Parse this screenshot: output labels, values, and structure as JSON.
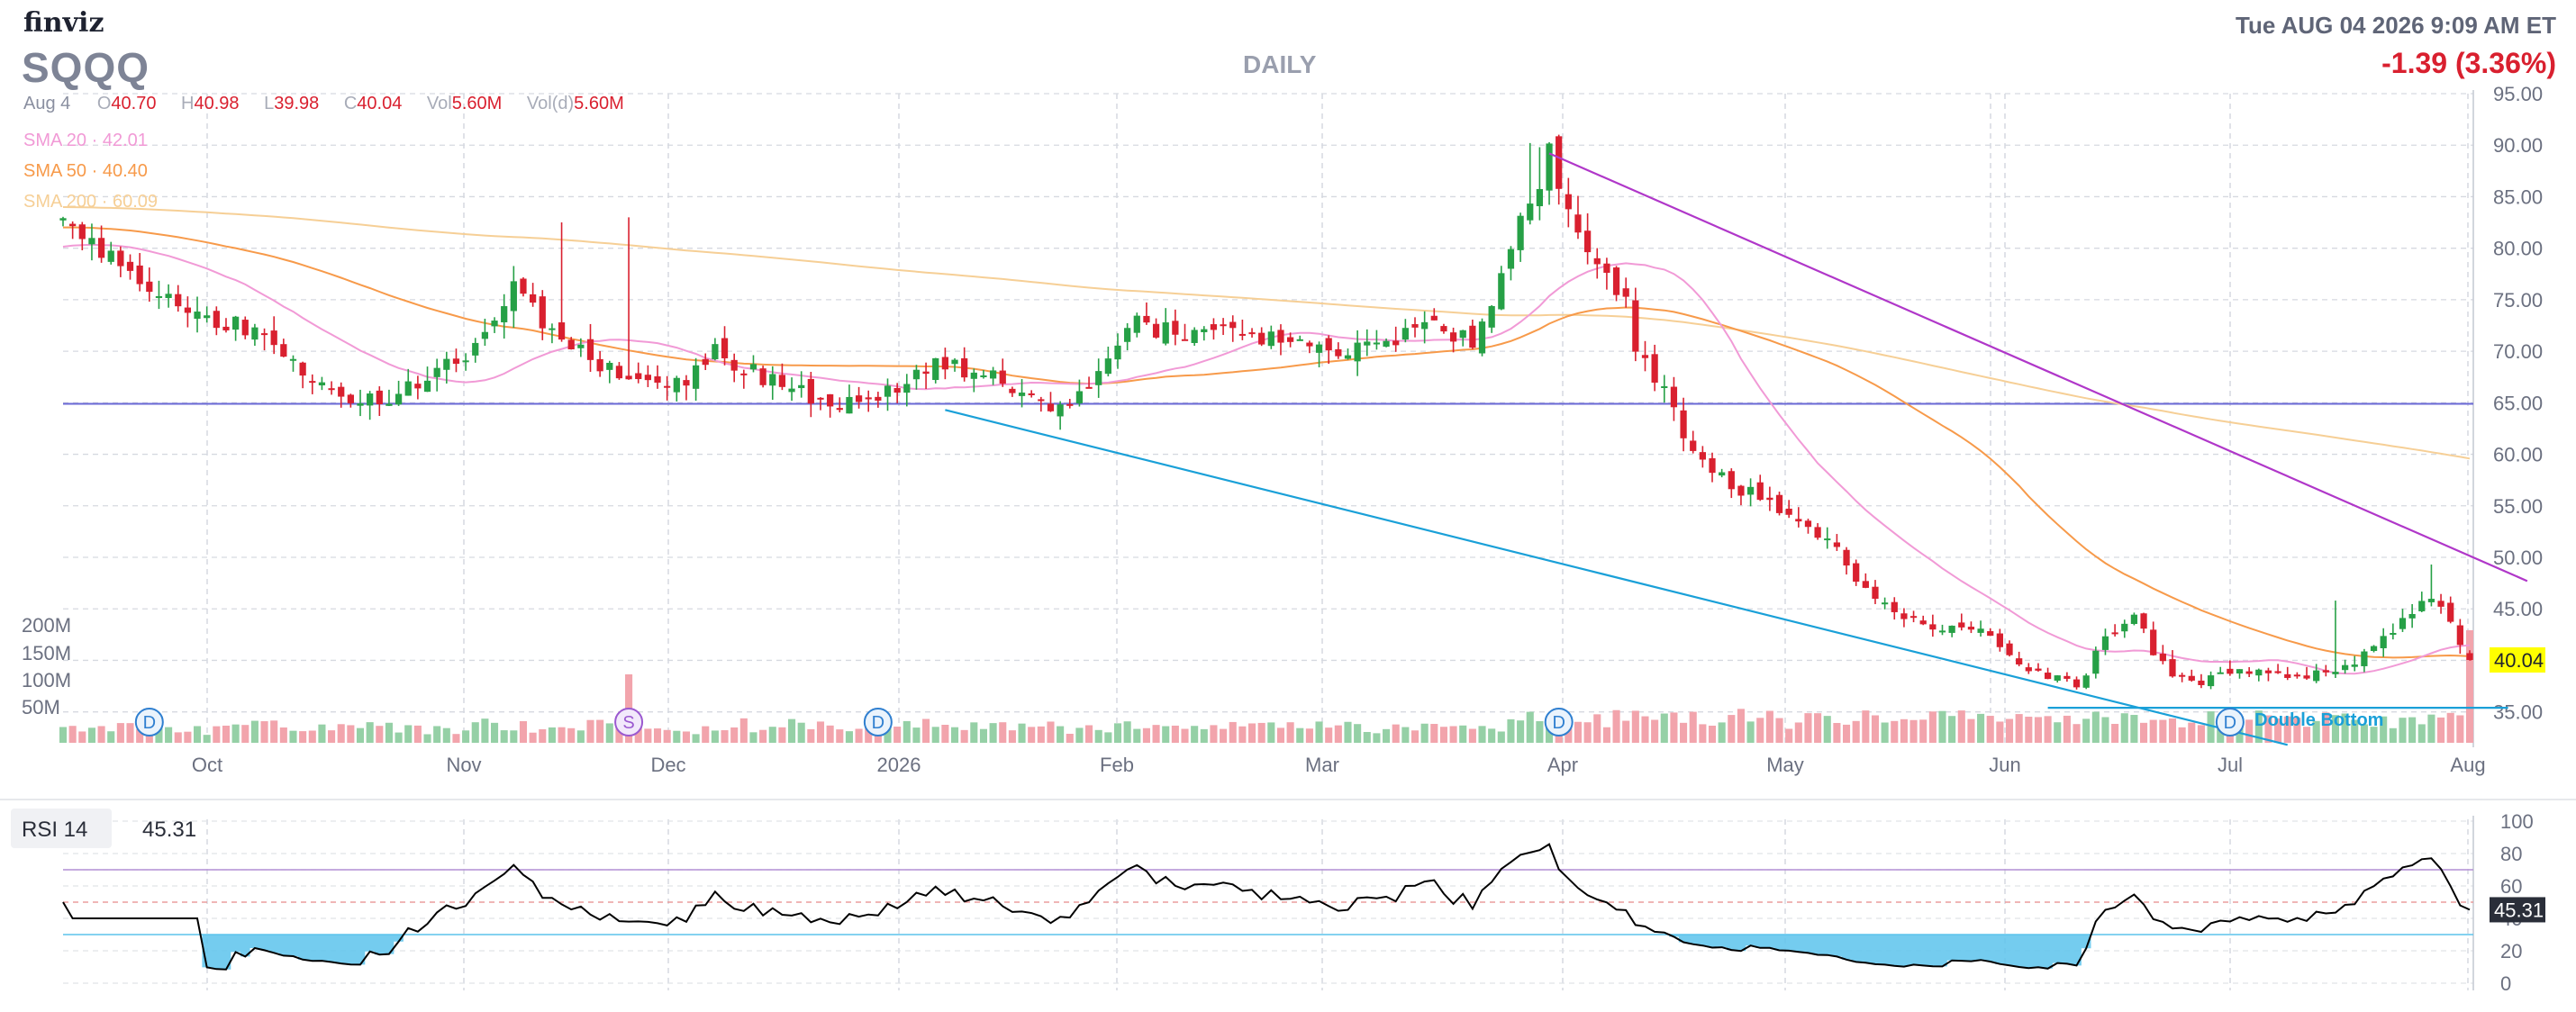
{
  "header": {
    "logo_text": "finviz",
    "ticker": "SQQQ",
    "timeframe": "DAILY",
    "datetime": "Tue AUG 04 2026 9:09 AM ET",
    "change": "-1.39 (3.36%)",
    "ohlc": {
      "date": "Aug 4",
      "o_label": "O",
      "o": "40.70",
      "h_label": "H",
      "h": "40.98",
      "l_label": "L",
      "l": "39.98",
      "c_label": "C",
      "c": "40.04",
      "vol_label": "Vol",
      "vol": "5.60M",
      "vold_label": "Vol(d)",
      "vold": "5.60M"
    },
    "sma": [
      {
        "label": "SMA 20",
        "value": "42.01",
        "color": "#f19ad6"
      },
      {
        "label": "SMA 50",
        "value": "40.40",
        "color": "#f79a4a"
      },
      {
        "label": "SMA 200",
        "value": "60.09",
        "color": "#f6cf96"
      }
    ],
    "last_price_badge": "40.04"
  },
  "colors": {
    "up": "#26a046",
    "down": "#d9202f",
    "vol_up": "#95d0a6",
    "vol_down": "#f2a4ac",
    "trendline_purple": "#b037c9",
    "trendline_blue": "#1aa0d8",
    "support_line": "#6a68d6",
    "rsi_line": "#000000",
    "rsi_fill": "#5cc3ec",
    "badge_bg": "#ffff00",
    "change_red": "#d9202f"
  },
  "chart_data": [
    {
      "type": "candlestick",
      "title": "SQQQ DAILY",
      "x_tick_labels": [
        "Oct",
        "Nov",
        "Dec",
        "2026",
        "Feb",
        "Mar",
        "Apr",
        "May",
        "Jun",
        "Jul",
        "Aug"
      ],
      "y_ticks": [
        35,
        40,
        45,
        50,
        55,
        60,
        65,
        70,
        75,
        80,
        85,
        90,
        95
      ],
      "y_tick_labels": [
        "35.00",
        "40.00",
        "45.00",
        "50.00",
        "55.00",
        "60.00",
        "65.00",
        "70.00",
        "75.00",
        "80.00",
        "85.00",
        "90.00",
        "95.00"
      ],
      "ylim": [
        32,
        95
      ],
      "volume_ticks": [
        "200M",
        "150M",
        "100M",
        "50M"
      ],
      "horizontal_line": 64.9,
      "close_anchors": [
        [
          0,
          83
        ],
        [
          5,
          79
        ],
        [
          12,
          74
        ],
        [
          20,
          72
        ],
        [
          25,
          68
        ],
        [
          30,
          64.5
        ],
        [
          35,
          66
        ],
        [
          42,
          70
        ],
        [
          47,
          76
        ],
        [
          52,
          71
        ],
        [
          57,
          68
        ],
        [
          63,
          66
        ],
        [
          68,
          70
        ],
        [
          74,
          67
        ],
        [
          80,
          65
        ],
        [
          86,
          66
        ],
        [
          92,
          69
        ],
        [
          98,
          67
        ],
        [
          103,
          64
        ],
        [
          107,
          67
        ],
        [
          112,
          73
        ],
        [
          117,
          71
        ],
        [
          122,
          72
        ],
        [
          127,
          71
        ],
        [
          132,
          70
        ],
        [
          137,
          70
        ],
        [
          142,
          73
        ],
        [
          147,
          71
        ],
        [
          152,
          82
        ],
        [
          155,
          89
        ],
        [
          158,
          82
        ],
        [
          161,
          77
        ],
        [
          163,
          75
        ],
        [
          164,
          70
        ],
        [
          167,
          66
        ],
        [
          170,
          60
        ],
        [
          174,
          57
        ],
        [
          179,
          55
        ],
        [
          184,
          52
        ],
        [
          188,
          47
        ],
        [
          192,
          44
        ],
        [
          197,
          43
        ],
        [
          200,
          43
        ],
        [
          205,
          39
        ],
        [
          210,
          37.5
        ],
        [
          213,
          42
        ],
        [
          216,
          44
        ],
        [
          220,
          38
        ],
        [
          223,
          38
        ],
        [
          228,
          39
        ],
        [
          234,
          38.5
        ],
        [
          239,
          39.5
        ],
        [
          243,
          43
        ],
        [
          245,
          44.5
        ],
        [
          247,
          46.5
        ],
        [
          249,
          44
        ],
        [
          250,
          42
        ],
        [
          251,
          40.04
        ]
      ],
      "volume_spikes": {
        "59": 3.5,
        "160": 1.8,
        "204": 1.6,
        "251": 5.5
      },
      "volume_markers": [
        {
          "index": 9,
          "label": "D",
          "kind": "dividend"
        },
        {
          "index": 59,
          "label": "S",
          "kind": "split"
        },
        {
          "index": 85,
          "label": "D",
          "kind": "dividend"
        },
        {
          "index": 156,
          "label": "D",
          "kind": "dividend"
        },
        {
          "index": 226,
          "label": "D",
          "kind": "dividend"
        }
      ],
      "patterns": [
        {
          "label": "Double Bottom"
        }
      ],
      "trendlines": [
        {
          "name": "resistance",
          "from": [
            155,
            89.2
          ],
          "to": [
            257,
            47.7
          ]
        },
        {
          "name": "support",
          "from": [
            92,
            64.3
          ],
          "to": [
            232,
            31.8
          ]
        },
        {
          "name": "double-bottom-neckline",
          "from": [
            207,
            35.4
          ],
          "to": [
            255,
            35.4
          ]
        }
      ]
    },
    {
      "type": "line",
      "title": "RSI 14",
      "current_value": "45.31",
      "y_ticks": [
        0,
        20,
        40,
        60,
        80,
        100
      ],
      "overbought": 70,
      "oversold": 30,
      "midline": 50,
      "ylim": [
        0,
        100
      ]
    }
  ]
}
